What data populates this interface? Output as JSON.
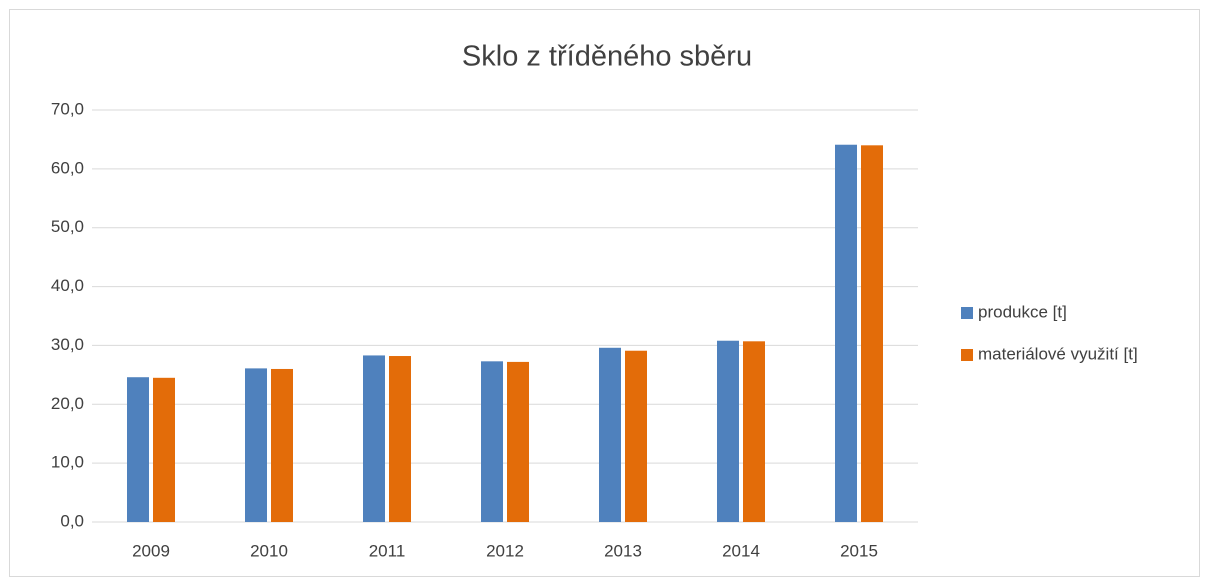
{
  "chart_data": {
    "type": "bar",
    "title": "Sklo z tříděného sběru",
    "categories": [
      "2009",
      "2010",
      "2011",
      "2012",
      "2013",
      "2014",
      "2015"
    ],
    "series": [
      {
        "name": "produkce [t]",
        "color": "#4f81bd",
        "values": [
          24.6,
          26.1,
          28.3,
          27.3,
          29.6,
          30.8,
          64.1
        ]
      },
      {
        "name": "materiálové využití [t]",
        "color": "#e36c09",
        "values": [
          24.5,
          26.0,
          28.2,
          27.2,
          29.1,
          30.7,
          64.0
        ]
      }
    ],
    "ylim": [
      0,
      70
    ],
    "yticks": [
      {
        "value": 0,
        "label": "0,0"
      },
      {
        "value": 10,
        "label": "10,0"
      },
      {
        "value": 20,
        "label": "20,0"
      },
      {
        "value": 30,
        "label": "30,0"
      },
      {
        "value": 40,
        "label": "40,0"
      },
      {
        "value": 50,
        "label": "50,0"
      },
      {
        "value": 60,
        "label": "60,0"
      },
      {
        "value": 70,
        "label": "70,0"
      }
    ],
    "grid": true,
    "legend": "right"
  }
}
